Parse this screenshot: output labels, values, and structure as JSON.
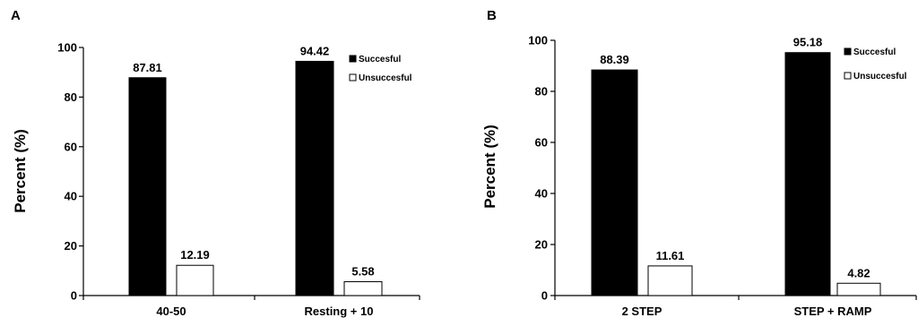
{
  "chart_data": [
    {
      "type": "bar",
      "panel": "A",
      "categories": [
        "40-50",
        "Resting + 10"
      ],
      "series": [
        {
          "name": "Succesful",
          "values": [
            87.81,
            94.42
          ],
          "color": "#000000"
        },
        {
          "name": "Unsuccesful",
          "values": [
            12.19,
            5.58
          ],
          "color": "#ffffff"
        }
      ],
      "data_labels": [
        [
          "87.81",
          "94.42"
        ],
        [
          "12.19",
          "5.58"
        ]
      ],
      "ylabel": "Percent (%)",
      "ylim": [
        0,
        100
      ],
      "yticks": [
        0,
        20,
        40,
        60,
        80,
        100
      ],
      "legend": "top-right"
    },
    {
      "type": "bar",
      "panel": "B",
      "categories": [
        "2 STEP",
        "STEP + RAMP"
      ],
      "series": [
        {
          "name": "Succesful",
          "values": [
            88.39,
            95.18
          ],
          "color": "#000000"
        },
        {
          "name": "Unsuccesful",
          "values": [
            11.61,
            4.82
          ],
          "color": "#ffffff"
        }
      ],
      "data_labels": [
        [
          "88.39",
          "95.18"
        ],
        [
          "11.61",
          "4.82"
        ]
      ],
      "ylabel": "Percent (%)",
      "ylim": [
        0,
        100
      ],
      "yticks": [
        0,
        20,
        40,
        60,
        80,
        100
      ],
      "legend": "top-right"
    }
  ]
}
